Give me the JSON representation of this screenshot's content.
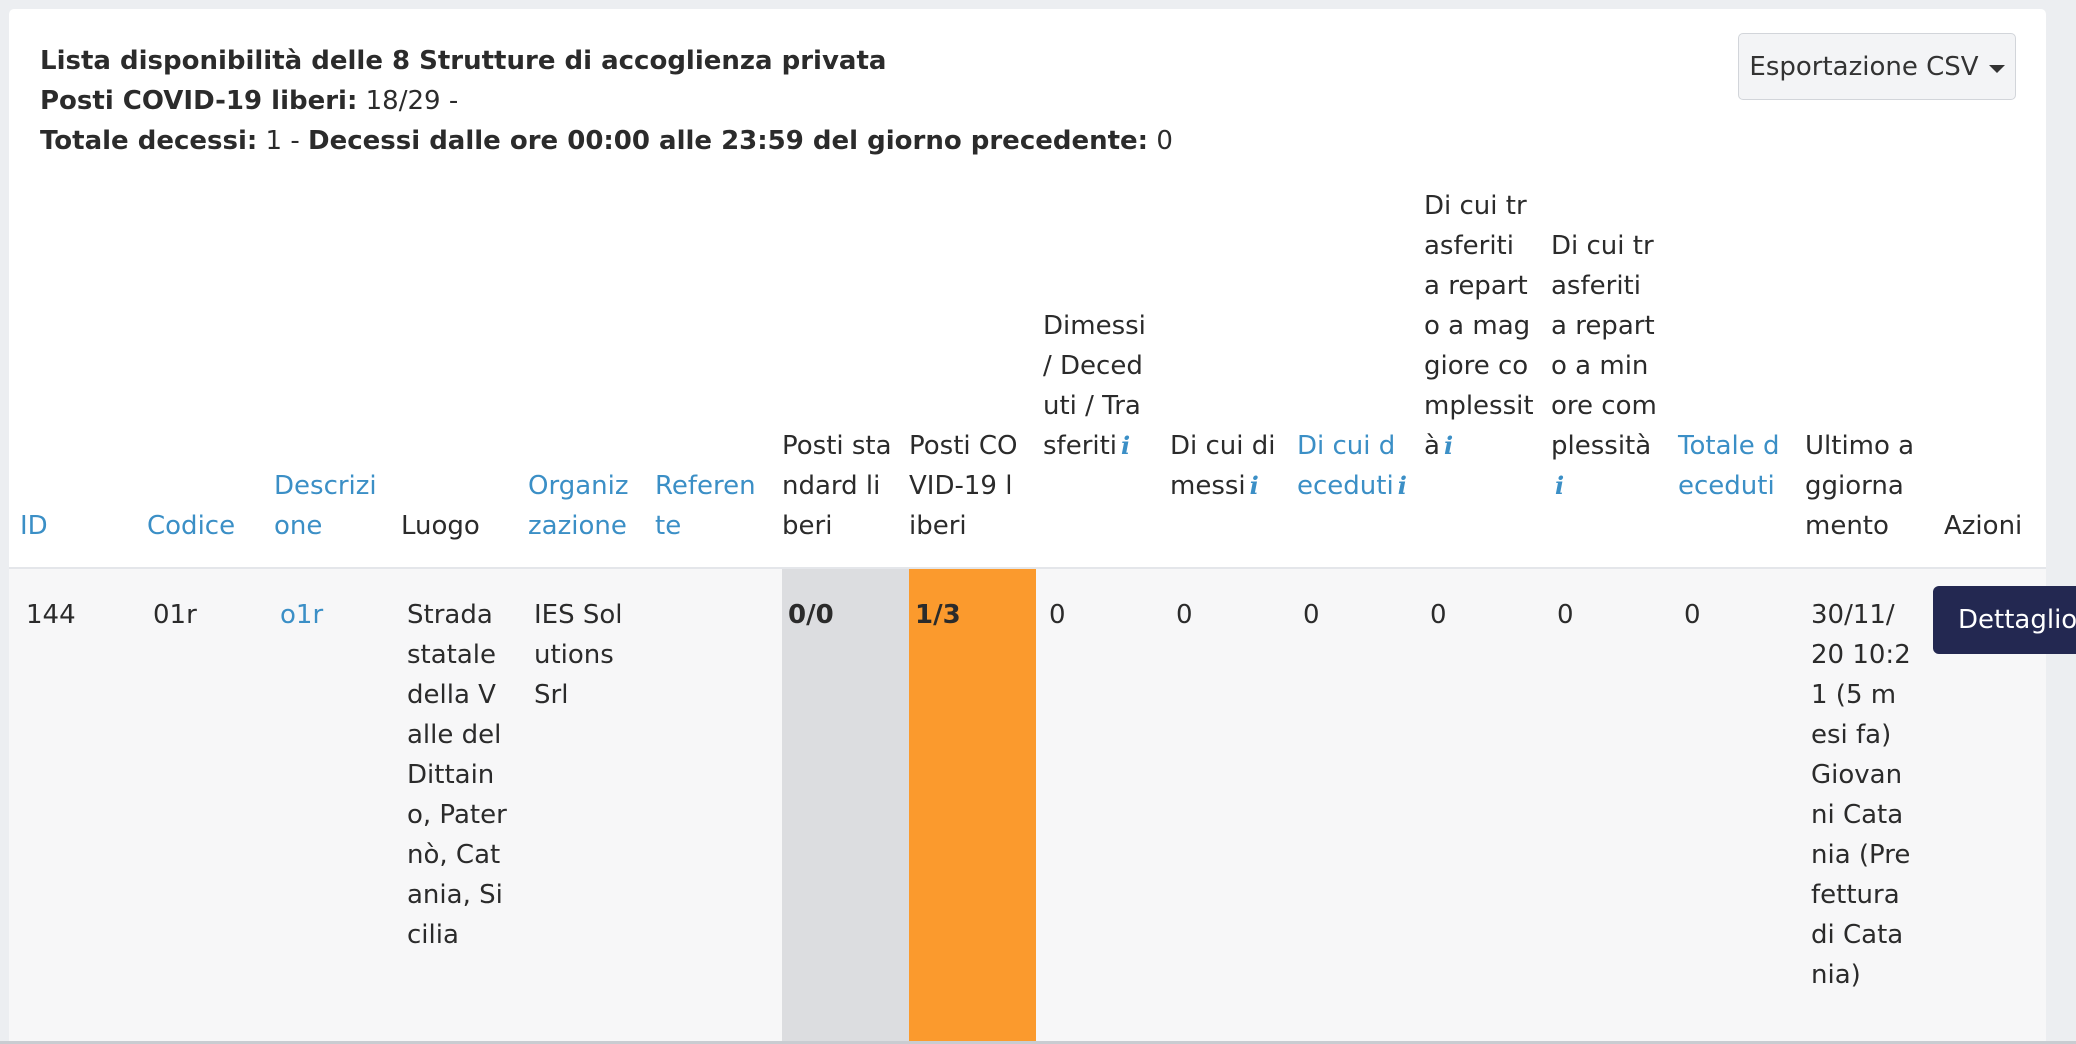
{
  "summary": {
    "title": "Lista disponibilità delle 8 Strutture di accoglienza privata",
    "posti_label": "Posti COVID-19 liberi:",
    "posti_value": "18/29 -",
    "decessi_label": "Totale decessi:",
    "decessi_value": "1 -",
    "decessi_giorno_label": "Decessi dalle ore 00:00 alle 23:59 del giorno precedente:",
    "decessi_giorno_value": "0"
  },
  "toolbar": {
    "export_label": "Esportazione CSV"
  },
  "columns": {
    "id": "ID",
    "codice": "Codice",
    "descrizione": "Descrizione",
    "luogo": "Luogo",
    "organizzazione": "Organizzazione",
    "referente": "Referente",
    "posti_standard": "Posti standard liberi",
    "posti_covid": "Posti COVID-19 liberi",
    "dimessi_deceduti_trasferiti": "Dimessi / Deceduti / Trasferiti",
    "di_cui_dimessi": "Di cui dimessi",
    "di_cui_deceduti": "Di cui deceduti",
    "trasferiti_maggiore": "Di cui trasferiti a reparto a maggiore complessità",
    "trasferiti_minore": "Di cui trasferiti a reparto a minore complessità",
    "totale_deceduti": "Totale deceduti",
    "ultimo_aggiornamento": "Ultimo aggiornamento",
    "azioni": "Azioni"
  },
  "row": {
    "id": "144",
    "codice": "01r",
    "descrizione": "o1r",
    "luogo": "Strada statale della Valle del Dittaino, Paternò, Catania, Sicilia",
    "organizzazione": "IES Solutions Srl",
    "referente": "",
    "posti_standard": "0/0",
    "posti_covid": "1/3",
    "dimessi_deceduti_trasferiti": "0",
    "di_cui_dimessi": "0",
    "di_cui_deceduti": "0",
    "trasferiti_maggiore": "0",
    "trasferiti_minore": "0",
    "totale_deceduti": "0",
    "ultimo_aggiornamento": "30/11/20 10:21 (5 mesi fa) Giovanni Catania (Prefettura di Catania)",
    "action_label": "Dettaglio"
  },
  "colors": {
    "covid_cell": "#fb9a2d",
    "standard_cell": "#dcdde0",
    "link": "#3b8fc6",
    "action_button": "#232851"
  },
  "icons": {
    "info": "info-icon",
    "caret": "caret-down-icon"
  }
}
